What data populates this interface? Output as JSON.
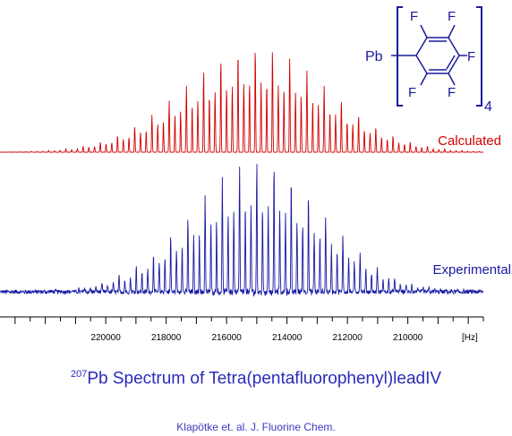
{
  "chart_data": {
    "type": "line",
    "title_sup": "207",
    "title": "Pb Spectrum of Tetra(pentafluorophenyl)leadIV",
    "credit": "Klapötke et. al. J. Fluorine Chem.",
    "x_unit": "[Hz]",
    "xlim": [
      223500,
      207500
    ],
    "x_reversed": true,
    "major_ticks": [
      220000,
      218000,
      216000,
      214000,
      212000,
      210000
    ],
    "minor_tick_step": 500,
    "peak_spacing_hz": 190,
    "series": [
      {
        "name": "Calculated",
        "color": "#d40000",
        "envelope_center": 215050,
        "envelope_fwhm": 5600,
        "max_relative_intensity": 1.0,
        "noise": 0.0
      },
      {
        "name": "Experimental",
        "color": "#1a1aa6",
        "envelope_center": 215000,
        "envelope_fwhm": 5200,
        "max_relative_intensity": 1.0,
        "noise": 0.05
      }
    ],
    "annotation": {
      "metal": "Pb",
      "substituent_atoms": [
        "F",
        "F",
        "F",
        "F",
        "F"
      ],
      "count_subscript": "4"
    }
  }
}
